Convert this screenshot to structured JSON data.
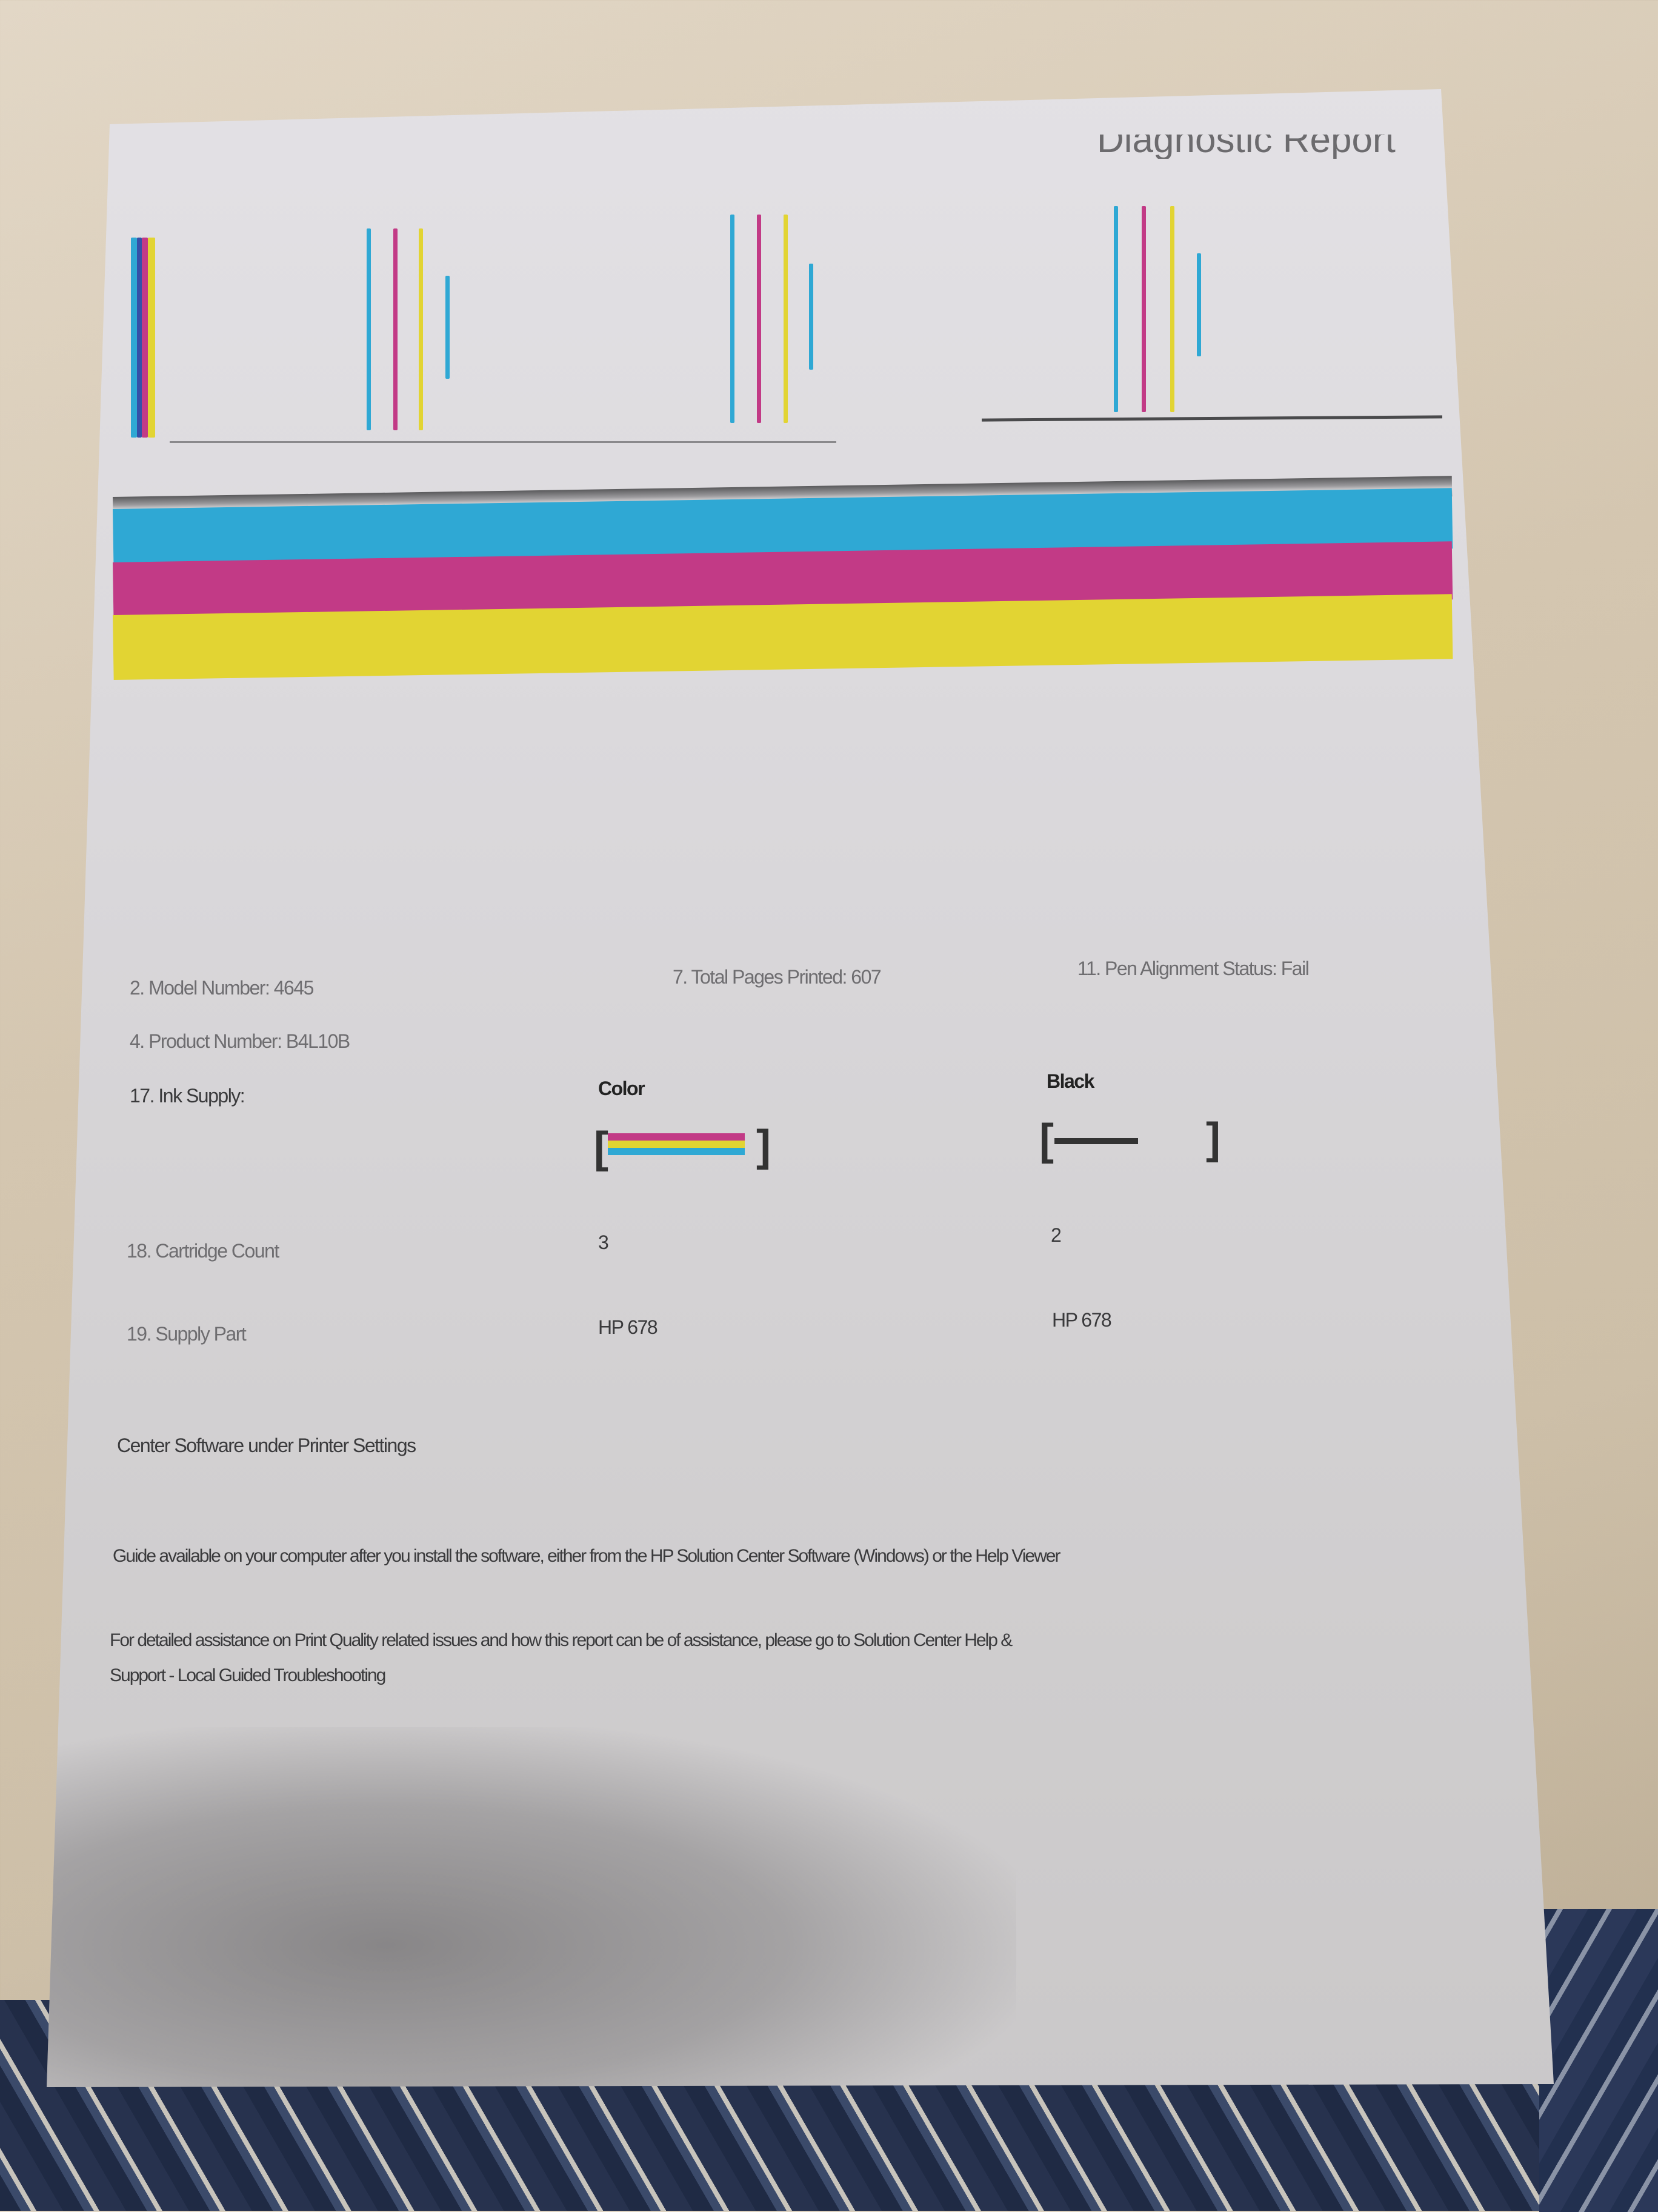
{
  "report": {
    "title": "Diagnostic Report",
    "fields": {
      "model_number": "2. Model Number: 4645",
      "product_number": "4. Product Number: B4L10B",
      "total_pages": "7. Total Pages Printed: 607",
      "pen_alignment": "11. Pen Alignment Status: Fail",
      "ink_supply_label": "17. Ink Supply:",
      "cartridge_count_label": "18. Cartridge Count",
      "supply_part_label": "19. Supply Part"
    },
    "cartridges": [
      {
        "name": "Color",
        "count": "3",
        "part": "HP 678",
        "level_percent": 85
      },
      {
        "name": "Black",
        "count": "2",
        "part": "HP 678",
        "level_percent": 50
      }
    ],
    "notes": [
      "Center Software under Printer Settings",
      "Guide available on your computer after you install the software, either from the HP Solution Center Software (Windows) or the Help Viewer",
      "For detailed assistance on Print Quality related issues and how this report can be of assistance, please go to Solution Center Help &",
      "Support - Local Guided Troubleshooting"
    ]
  },
  "colors": {
    "cyan": "#2fa8d4",
    "magenta": "#c23a86",
    "yellow": "#e2d433",
    "black": "#333333"
  }
}
